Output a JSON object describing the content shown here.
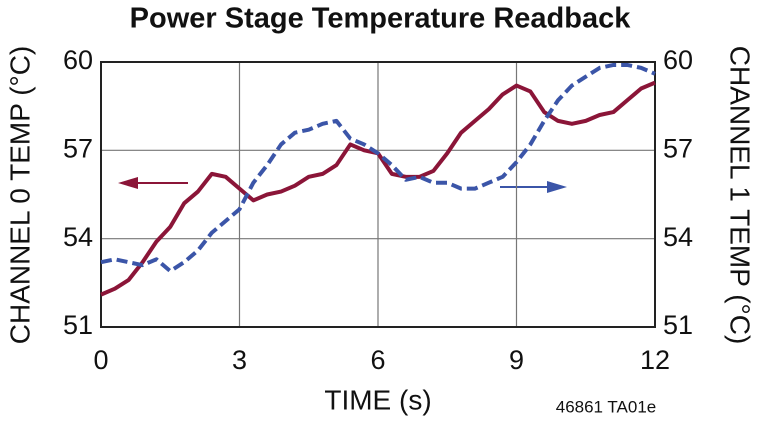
{
  "chart_data": {
    "type": "line",
    "title": "Power Stage Temperature Readback",
    "x_label": "TIME (s)",
    "y_label": "CHANNEL 0 TEMP (°C)",
    "y2_label": "CHANNEL 1 TEMP (°C)",
    "annotation": "46861 TA01e",
    "x": [
      0,
      0.3,
      0.6,
      0.9,
      1.2,
      1.5,
      1.8,
      2.1,
      2.4,
      2.7,
      3.0,
      3.3,
      3.6,
      3.9,
      4.2,
      4.5,
      4.8,
      5.1,
      5.4,
      5.7,
      6.0,
      6.3,
      6.6,
      6.9,
      7.2,
      7.5,
      7.8,
      8.1,
      8.4,
      8.7,
      9.0,
      9.3,
      9.6,
      9.9,
      10.2,
      10.5,
      10.8,
      11.1,
      11.4,
      11.7,
      12
    ],
    "series": [
      {
        "name": "CHANNEL 0",
        "color": "#8b1538",
        "dashed": false,
        "values": [
          52.1,
          52.3,
          52.6,
          53.2,
          53.9,
          54.4,
          55.2,
          55.6,
          56.2,
          56.1,
          55.7,
          55.3,
          55.5,
          55.6,
          55.8,
          56.1,
          56.2,
          56.5,
          57.2,
          57.0,
          56.9,
          56.2,
          56.1,
          56.1,
          56.3,
          56.9,
          57.6,
          58.0,
          58.4,
          58.9,
          59.2,
          59.0,
          58.3,
          58.0,
          57.9,
          58.0,
          58.2,
          58.3,
          58.7,
          59.1,
          59.3
        ]
      },
      {
        "name": "CHANNEL 1",
        "color": "#3b55a8",
        "dashed": true,
        "axis": "y2",
        "values": [
          53.2,
          53.3,
          53.2,
          53.1,
          53.3,
          52.9,
          53.2,
          53.6,
          54.2,
          54.6,
          55.0,
          55.9,
          56.5,
          57.2,
          57.6,
          57.7,
          57.9,
          58.0,
          57.4,
          57.2,
          56.9,
          56.5,
          56.0,
          56.1,
          55.9,
          55.9,
          55.7,
          55.7,
          55.9,
          56.1,
          56.6,
          57.2,
          58.0,
          58.7,
          59.2,
          59.5,
          59.8,
          59.9,
          59.9,
          59.8,
          59.6
        ]
      }
    ],
    "xlim": [
      0,
      12
    ],
    "xticks": [
      0,
      3,
      6,
      9,
      12
    ],
    "ylim": [
      51,
      60
    ],
    "yticks": [
      51,
      54,
      57,
      60
    ],
    "y2lim": [
      51,
      60
    ],
    "y2ticks": [
      51,
      54,
      57,
      60
    ],
    "grid": true
  }
}
